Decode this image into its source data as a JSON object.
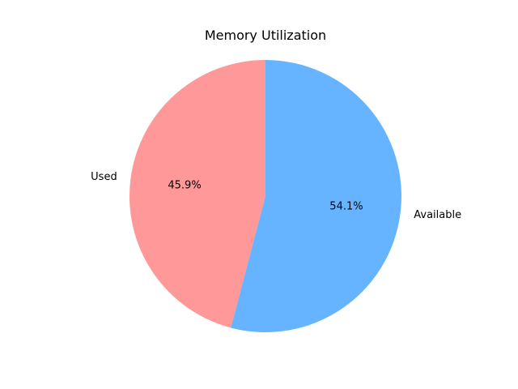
{
  "chart_data": {
    "type": "pie",
    "title": "Memory Utilization",
    "start_angle_deg": 90,
    "direction": "counterclockwise",
    "slices": [
      {
        "label": "Used",
        "value": 45.9,
        "pct_label": "45.9%",
        "color": "#ff9999"
      },
      {
        "label": "Available",
        "value": 54.1,
        "pct_label": "54.1%",
        "color": "#66b3ff"
      }
    ]
  }
}
